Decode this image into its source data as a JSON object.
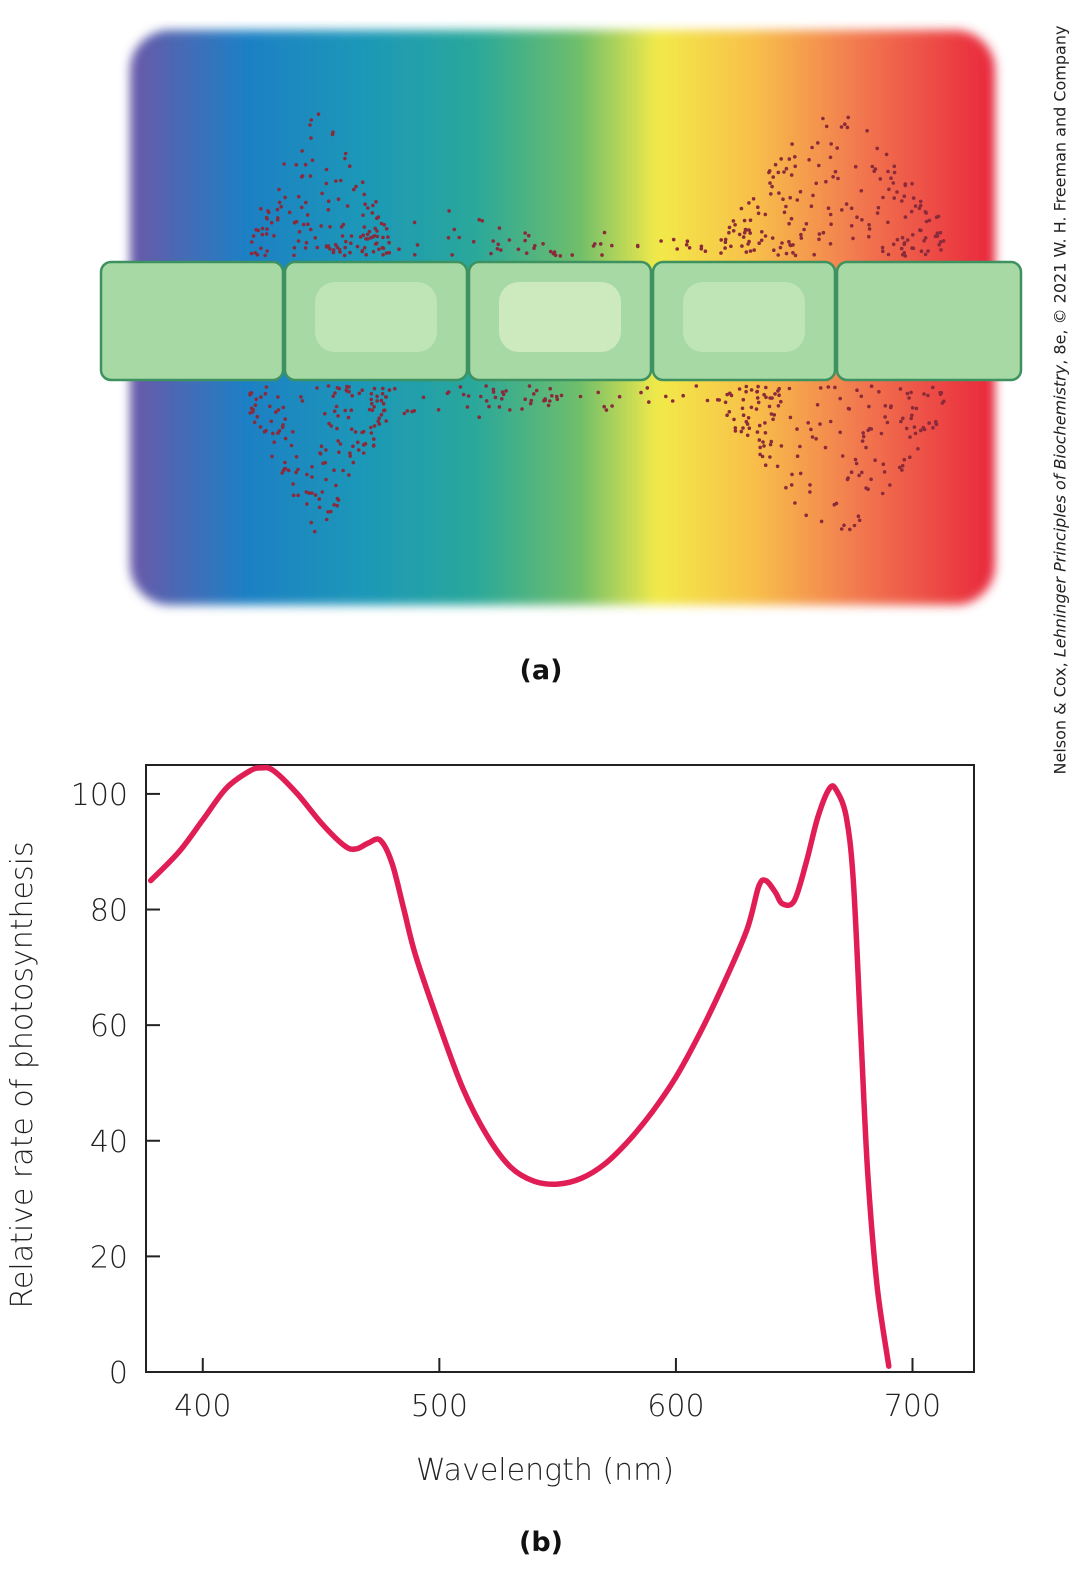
{
  "panel_a_label": "(a)",
  "panel_b_label": "(b)",
  "credit": {
    "authors": "Nelson & Cox, ",
    "book": "Lehninger Principles of Biochemistry",
    "rest": ", 8e, © 2021 W. H. Freeman and Company"
  },
  "colors": {
    "curve": "#e01e55",
    "cells": "#a6d9a3",
    "cell_border": "#3e9160",
    "dots": "#8a2a3a"
  },
  "chart_data": {
    "type": "line",
    "title": "",
    "xlabel": "Wavelength (nm)",
    "ylabel": "Relative rate of photosynthesis",
    "xlim": [
      376,
      726
    ],
    "ylim": [
      0,
      105
    ],
    "xticks": [
      400,
      500,
      600,
      700
    ],
    "yticks": [
      0,
      20,
      40,
      60,
      80,
      100
    ],
    "grid": false,
    "series": [
      {
        "name": "",
        "color": "#e01e55",
        "points": [
          [
            378,
            85
          ],
          [
            390,
            90
          ],
          [
            400,
            95.5
          ],
          [
            410,
            101
          ],
          [
            420,
            104
          ],
          [
            425,
            104.5
          ],
          [
            430,
            104
          ],
          [
            440,
            100
          ],
          [
            450,
            95
          ],
          [
            460,
            91
          ],
          [
            465,
            90.5
          ],
          [
            470,
            91.5
          ],
          [
            475,
            92
          ],
          [
            480,
            88
          ],
          [
            485,
            80
          ],
          [
            490,
            72
          ],
          [
            500,
            60
          ],
          [
            510,
            49
          ],
          [
            520,
            41
          ],
          [
            530,
            35.5
          ],
          [
            540,
            33
          ],
          [
            550,
            32.5
          ],
          [
            560,
            33.5
          ],
          [
            570,
            36
          ],
          [
            580,
            40
          ],
          [
            590,
            45
          ],
          [
            600,
            51
          ],
          [
            610,
            58.5
          ],
          [
            620,
            67
          ],
          [
            630,
            76.5
          ],
          [
            635,
            84
          ],
          [
            638,
            85
          ],
          [
            642,
            83
          ],
          [
            645,
            81
          ],
          [
            650,
            81.5
          ],
          [
            655,
            88
          ],
          [
            660,
            96
          ],
          [
            665,
            101
          ],
          [
            668,
            100.5
          ],
          [
            672,
            96
          ],
          [
            675,
            85
          ],
          [
            678,
            60
          ],
          [
            681,
            35
          ],
          [
            685,
            15
          ],
          [
            690,
            1
          ]
        ]
      }
    ]
  }
}
